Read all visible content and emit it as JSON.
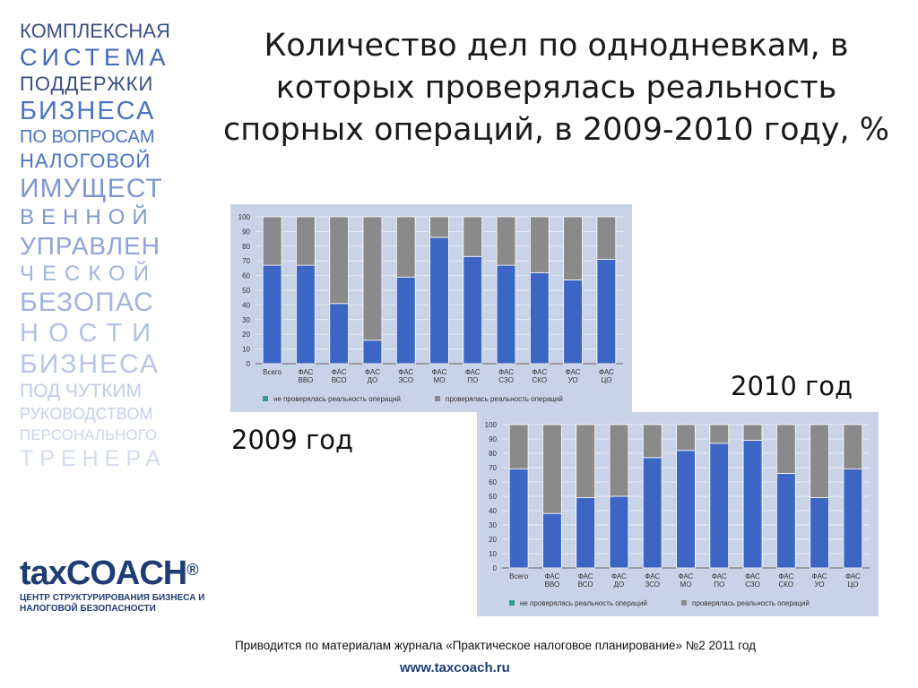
{
  "sidebar": {
    "lines": [
      {
        "text": "КОМПЛЕКСНАЯ",
        "size": 22,
        "color": "#3a4f80",
        "ls": 0,
        "h": 26
      },
      {
        "text": "СИСТЕМА",
        "size": 27,
        "color": "#3f66b8",
        "ls": 5,
        "h": 32
      },
      {
        "text": "ПОДДЕРЖКИ",
        "size": 22,
        "color": "#3a4f80",
        "ls": 1,
        "h": 27
      },
      {
        "text": "БИЗНЕСА",
        "size": 29,
        "color": "#4a73c3",
        "ls": 2,
        "h": 34
      },
      {
        "text": "ПО ВОПРОСАМ",
        "size": 20,
        "color": "#4a73c3",
        "ls": 0,
        "h": 25
      },
      {
        "text": "НАЛОГОВОЙ",
        "size": 22,
        "color": "#4a73c3",
        "ls": 1,
        "h": 27
      },
      {
        "text": "ИМУЩЕСТ",
        "size": 30,
        "color": "#7f97cf",
        "ls": 1,
        "h": 35
      },
      {
        "text": "ВЕННОЙ",
        "size": 24,
        "color": "#7f97cf",
        "ls": 8,
        "h": 30
      },
      {
        "text": "УПРАВЛЕН",
        "size": 28,
        "color": "#8ea3d6",
        "ls": 1,
        "h": 33
      },
      {
        "text": "ЧЕСКОЙ",
        "size": 24,
        "color": "#a3b3df",
        "ls": 9,
        "h": 29
      },
      {
        "text": "БЕЗОПАС",
        "size": 30,
        "color": "#a3b3df",
        "ls": 1,
        "h": 35
      },
      {
        "text": "НОСТИ",
        "size": 29,
        "color": "#b4c1e4",
        "ls": 11,
        "h": 34
      },
      {
        "text": "БИЗНЕСА",
        "size": 30,
        "color": "#b8c4e6",
        "ls": 2,
        "h": 35
      },
      {
        "text": "ПОД ЧУТКИМ",
        "size": 21,
        "color": "#c0cbe9",
        "ls": 0,
        "h": 26
      },
      {
        "text": "РУКОВОДСТВОМ",
        "size": 18,
        "color": "#c4cee9",
        "ls": 0,
        "h": 24
      },
      {
        "text": "ПЕРСОНАЛЬНОГО",
        "size": 17,
        "color": "#ccd5ed",
        "ls": 0,
        "h": 23
      },
      {
        "text": "ТРЕНЕРА",
        "size": 25,
        "color": "#d3dbef",
        "ls": 7,
        "h": 30
      }
    ]
  },
  "title": "Количество дел по однодневкам, в которых проверялась реальность спорных операций, в 2009-2010 году, %",
  "label_2010": "2010 год",
  "label_2009": "2009 год",
  "logo": {
    "main": "taxCOACH",
    "reg": "®",
    "sub_line1": "ЦЕНТР СТРУКТУРИРОВАНИЯ БИЗНЕСА И",
    "sub_line2": "НАЛОГОВОЙ БЕЗОПАСНОСТИ"
  },
  "source": "Приводится по материалам журнала «Практическое налоговое планирование» №2 2011 год",
  "url": "www.taxcoach.ru",
  "chart_data": [
    {
      "type": "bar",
      "stacked": true,
      "categories": [
        "Всего",
        "ФАС ВВО",
        "ФАС ВСО",
        "ФАС ДО",
        "ФАС ЗСО",
        "ФАС МО",
        "ФАС ПО",
        "ФАС СЗО",
        "ФАС СКО",
        "ФАС УО",
        "ФАС ЦО"
      ],
      "series": [
        {
          "name": "не проверялась реальность операций",
          "color": "#3d66c4",
          "values": [
            67,
            67,
            41,
            16,
            59,
            86,
            73,
            67,
            62,
            57,
            71
          ]
        },
        {
          "name": "проверялась реальность операций",
          "color": "#8a8a8a",
          "values": [
            33,
            33,
            59,
            84,
            41,
            14,
            27,
            33,
            38,
            43,
            29
          ]
        }
      ],
      "ylim": [
        0,
        100
      ],
      "yticks": [
        0,
        10,
        20,
        30,
        40,
        50,
        60,
        70,
        80,
        90,
        100
      ],
      "grid": true,
      "legend_position": "bottom"
    },
    {
      "type": "bar",
      "stacked": true,
      "categories": [
        "Всего",
        "ФАС ВВО",
        "ФАС ВСО",
        "ФАС ДО",
        "ФАС ЗСО",
        "ФАС МО",
        "ФАС ПО",
        "ФАС СЗО",
        "ФАС СКО",
        "ФАС УО",
        "ФАС ЦО"
      ],
      "series": [
        {
          "name": "не проверялась реальность операций",
          "color": "#3d66c4",
          "values": [
            69,
            38,
            49,
            50,
            77,
            82,
            87,
            89,
            66,
            49,
            69
          ]
        },
        {
          "name": "проверялась реальность операций",
          "color": "#8a8a8a",
          "values": [
            31,
            62,
            51,
            50,
            23,
            18,
            13,
            11,
            34,
            51,
            31
          ]
        }
      ],
      "ylim": [
        0,
        100
      ],
      "yticks": [
        0,
        10,
        20,
        30,
        40,
        50,
        60,
        70,
        80,
        90,
        100
      ],
      "grid": true,
      "legend_position": "bottom"
    }
  ]
}
